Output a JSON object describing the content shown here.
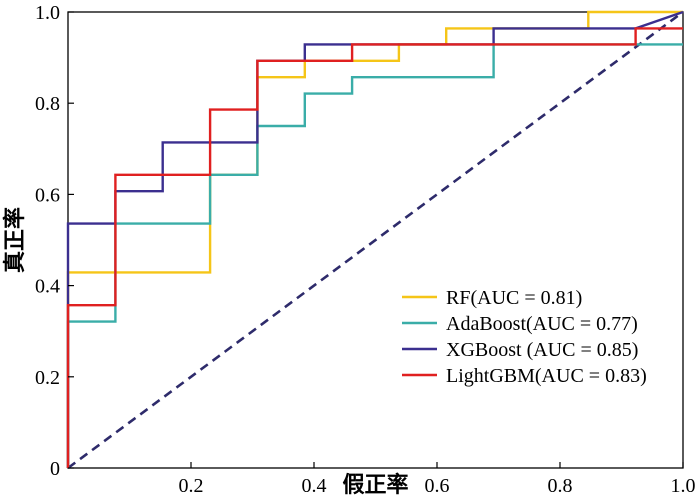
{
  "chart_data": {
    "type": "line",
    "xlabel": "假正率",
    "ylabel": "真正率",
    "xlim": [
      0,
      1
    ],
    "ylim": [
      0,
      1
    ],
    "x_ticks": [
      0.2,
      0.4,
      0.6,
      0.8,
      1.0
    ],
    "x_tick_labels": [
      "0.2",
      "0.4",
      "0.6",
      "0.8",
      "1.0"
    ],
    "y_ticks": [
      0,
      0.2,
      0.4,
      0.6,
      0.8,
      1.0
    ],
    "y_tick_labels": [
      "0",
      "0.2",
      "0.4",
      "0.6",
      "0.8",
      "1.0"
    ],
    "grid": false,
    "legend_position": "bottom-right",
    "series": [
      {
        "name": "RF(AUC = 0.81)",
        "color": "#F5C518",
        "x": [
          0,
          0,
          0.231,
          0.231,
          0.308,
          0.308,
          0.385,
          0.385,
          0.538,
          0.538,
          0.615,
          0.615,
          0.846,
          0.846,
          1.0
        ],
        "y": [
          0,
          0.429,
          0.429,
          0.643,
          0.643,
          0.857,
          0.857,
          0.893,
          0.893,
          0.929,
          0.929,
          0.964,
          0.964,
          1.0,
          1.0
        ]
      },
      {
        "name": "AdaBoost(AUC = 0.77)",
        "color": "#3AADA8",
        "x": [
          0,
          0,
          0.077,
          0.077,
          0.231,
          0.231,
          0.308,
          0.308,
          0.385,
          0.385,
          0.462,
          0.462,
          0.692,
          0.692,
          0.923,
          0.923,
          1.0
        ],
        "y": [
          0,
          0.321,
          0.321,
          0.536,
          0.536,
          0.643,
          0.643,
          0.75,
          0.75,
          0.821,
          0.821,
          0.857,
          0.857,
          0.929,
          0.929,
          0.929,
          0.929
        ]
      },
      {
        "name": "XGBoost (AUC = 0.85)",
        "color": "#3B2F8F",
        "x": [
          0,
          0,
          0.077,
          0.077,
          0.154,
          0.154,
          0.308,
          0.308,
          0.385,
          0.385,
          0.462,
          0.462,
          0.692,
          0.692,
          0.923,
          0.923,
          1.0
        ],
        "y": [
          0,
          0.536,
          0.536,
          0.607,
          0.607,
          0.714,
          0.714,
          0.893,
          0.893,
          0.929,
          0.929,
          0.929,
          0.929,
          0.964,
          0.964,
          0.964,
          1.0
        ]
      },
      {
        "name": "LightGBM(AUC = 0.83)",
        "color": "#E02020",
        "x": [
          0,
          0,
          0.077,
          0.077,
          0.231,
          0.231,
          0.308,
          0.308,
          0.462,
          0.462,
          0.923,
          0.923,
          1.0
        ],
        "y": [
          0,
          0.357,
          0.357,
          0.643,
          0.643,
          0.786,
          0.786,
          0.893,
          0.893,
          0.929,
          0.929,
          0.964,
          0.964
        ]
      }
    ],
    "reference_line": {
      "style": "dashed",
      "color": "#2E2B6B",
      "x": [
        0,
        1
      ],
      "y": [
        0,
        1
      ]
    }
  }
}
